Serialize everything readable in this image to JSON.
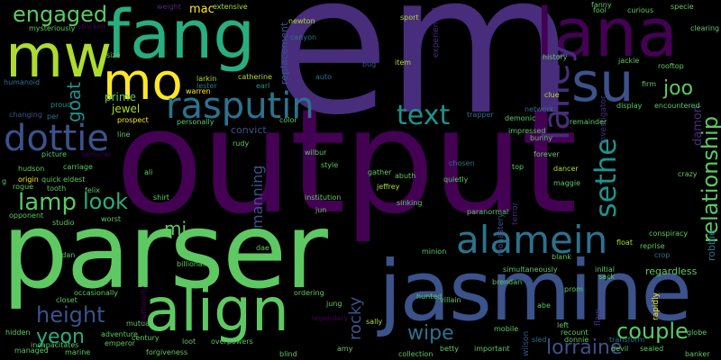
{
  "palette": {
    "background": "#000000",
    "dark_purple": "#440154",
    "purple": "#472d7b",
    "indigo": "#3b528b",
    "blue": "#2c728e",
    "teal": "#21918c",
    "sea_green": "#28ae80",
    "green": "#5ec962",
    "light_green": "#addc30",
    "yellow": "#fde725"
  },
  "words": {
    "em": "em",
    "output": "output",
    "parser": "parser",
    "jasmine": "jasmine",
    "fang": "fang",
    "lana": "lana",
    "mw": "mw",
    "mo": "mo",
    "su": "su",
    "align": "align",
    "rasputin": "rasputin",
    "alamein": "alamein",
    "dottie": "dottie",
    "text": "text",
    "laney": "laney",
    "sethe": "sethe",
    "engaged": "engaged",
    "lamp": "lamp",
    "look": "look",
    "height": "height",
    "couple": "couple",
    "lorraine": "lorraine",
    "wipe": "wipe",
    "relationship": "relationship",
    "joo": "joo",
    "yeon": "yeon",
    "goat": "goat",
    "mi": "mi",
    "rocky": "rocky",
    "manning": "manning",
    "mac": "mac",
    "replacement": "replacement",
    "damon": "damon",
    "robbie": "robbie",
    "jewel": "jewel",
    "prime": "prime",
    "convict": "convict",
    "regardless": "regardless",
    "mysteriously": "mysteriously",
    "larkin": "larkin",
    "catherine": "catherine",
    "weight": "weight",
    "extensive": "extensive",
    "newton": "newton",
    "canyon": "canyon",
    "fanny": "fanny",
    "curious": "curious",
    "specie": "specie",
    "clearing": "clearing",
    "fool": "fool",
    "history": "history",
    "jackie": "jackie",
    "firm": "firm",
    "rooftop": "rooftop",
    "display": "display",
    "encountered": "encountered",
    "investigator": "investigator",
    "remainder": "remainder",
    "network": "network",
    "demonic": "demonic",
    "clue": "clue",
    "trapper": "trapper",
    "impressed": "impressed",
    "bunny": "bunny",
    "forever": "forever",
    "dancer": "dancer",
    "maggie": "maggie",
    "chosen": "chosen",
    "top": "top",
    "crazy": "crazy",
    "conspiracy": "conspiracy",
    "float": "float",
    "reprise": "reprise",
    "crop": "crop",
    "blank": "blank",
    "simultaneously": "simultaneously",
    "initial": "initial",
    "sack": "sack",
    "prom": "prom",
    "recount": "recount",
    "donnie": "donnie",
    "transform": "transform",
    "devil": "devil",
    "sealed": "sealed",
    "globe": "globe",
    "banker": "banker",
    "rapidly": "rapidly",
    "left": "left",
    "sled": "sled",
    "mobile": "mobile",
    "wilson": "wilson",
    "brendan": "brendan",
    "hunted": "hunted",
    "minion": "minion",
    "villain": "villain",
    "paranormal": "paranormal",
    "monastery": "monastery",
    "terror": "terror",
    "betty": "betty",
    "important": "important",
    "collection": "collection",
    "sally": "sally",
    "amy": "amy",
    "legendary": "legendary",
    "jung": "jung",
    "ordering": "ordering",
    "blind": "blind",
    "overpowers": "overpowers",
    "loot": "loot",
    "forgiveness": "forgiveness",
    "century": "century",
    "emperor": "emperor",
    "adventure": "adventure",
    "humanity": "humanity",
    "occasionally": "occasionally",
    "closet": "closet",
    "billionaire": "billionaire",
    "jordan": "jordan",
    "studio": "studio",
    "opponent": "opponent",
    "rogue": "rogue",
    "origin": "origin",
    "quick": "quick",
    "eldest": "eldest",
    "tooth": "tooth",
    "felix": "felix",
    "worst": "worst",
    "shirt": "shirt",
    "ali": "ali",
    "hudson": "hudson",
    "carriage": "carriage",
    "picture": "picture",
    "samurai": "samurai",
    "line": "line",
    "changing": "changing",
    "per": "per",
    "proud": "proud",
    "humanoid": "humanoid",
    "stricken": "stricken",
    "size": "size",
    "warren": "warren",
    "lester": "lester",
    "earl": "earl",
    "auto": "auto",
    "bug": "bug",
    "item": "item",
    "sport": "sport",
    "rudy": "rudy",
    "personally": "personally",
    "prospect": "prospect",
    "color": "color",
    "wilbur": "wilbur",
    "style": "style",
    "gather": "gather",
    "abuth": "abuth",
    "quietly": "quietly",
    "jeffrey": "jeffrey",
    "institution": "institution",
    "jun": "jun",
    "sinking": "sinking",
    "hidden": "hidden",
    "managed": "managed",
    "marine": "marine",
    "incapacitates": "incapacitates",
    "mutual": "mutual",
    "dae": "dae",
    "f": "f",
    "g": "g",
    "flaw": "flaw",
    "abe": "abe",
    "experienced": "experienced"
  }
}
